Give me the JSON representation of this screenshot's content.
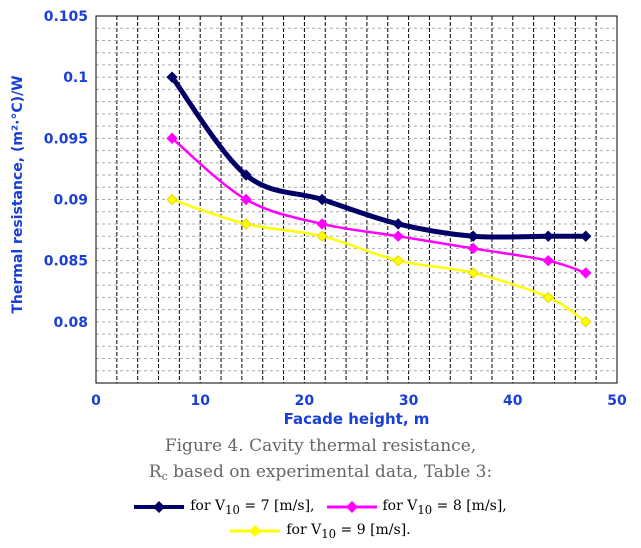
{
  "chart_data": {
    "type": "line",
    "title": "",
    "xlabel": "Facade height, m",
    "ylabel": "Thermal resistance, (m²·°C)/W",
    "xlim": [
      0,
      50
    ],
    "ylim": [
      0.075,
      0.105
    ],
    "x_ticks": [
      "0",
      "10",
      "20",
      "30",
      "40",
      "50"
    ],
    "y_ticks": [
      "0.08",
      "0.085",
      "0.09",
      "0.095",
      "0.1",
      "0.105"
    ],
    "grid": "vertical dashed, horizontal dashed",
    "legend_position": "below chart",
    "series": [
      {
        "name": "for V10 = 7 [m/s],",
        "color": "#000066",
        "marker": "diamond",
        "x": [
          7.3,
          14.4,
          21.7,
          29.0,
          36.2,
          43.4,
          47.0
        ],
        "values": [
          0.1,
          0.092,
          0.09,
          0.088,
          0.087,
          0.087,
          0.087
        ]
      },
      {
        "name": "for V10 = 8 [m/s],",
        "color": "#ff00ff",
        "marker": "diamond",
        "x": [
          7.3,
          14.4,
          21.7,
          29.0,
          36.2,
          43.4,
          47.0
        ],
        "values": [
          0.095,
          0.09,
          0.088,
          0.087,
          0.086,
          0.085,
          0.084
        ]
      },
      {
        "name": "for V10 = 9 [m/s].",
        "color": "#ffff00",
        "marker": "diamond",
        "x": [
          7.3,
          14.4,
          21.7,
          29.0,
          36.2,
          43.4,
          47.0
        ],
        "values": [
          0.09,
          0.088,
          0.087,
          0.085,
          0.084,
          0.082,
          0.08
        ]
      }
    ]
  },
  "caption": {
    "line1": "Figure 4. Cavity thermal resistance,",
    "line2_prefix": "R",
    "line2_sub": "c",
    "line2_suffix": " based on experimental data, Table 3:"
  },
  "legend": [
    {
      "prefix": "for V",
      "sub": "10",
      "suffix": " = 7 [m/s],",
      "color": "#000066"
    },
    {
      "prefix": "for V",
      "sub": "10",
      "suffix": " = 8 [m/s],",
      "color": "#ff00ff"
    },
    {
      "prefix": "for V",
      "sub": "10",
      "suffix": " = 9 [m/s].",
      "color": "#ffff00"
    }
  ]
}
